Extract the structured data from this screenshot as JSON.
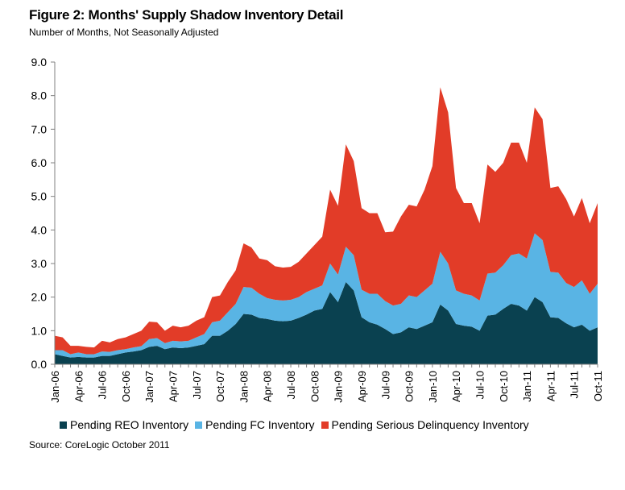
{
  "header": {
    "title": "Figure 2: Months' Supply Shadow Inventory Detail",
    "subtitle": "Number of Months, Not Seasonally Adjusted"
  },
  "footer": {
    "source": "Source: CoreLogic October 2011"
  },
  "colors": {
    "reo": "#0a4150",
    "fc": "#59b4e4",
    "sdq": "#e23c28",
    "axis": "#808080"
  },
  "chart_data": {
    "type": "area",
    "stacked": true,
    "title": "Figure 2: Months' Supply Shadow Inventory Detail",
    "subtitle": "Number of Months, Not Seasonally Adjusted",
    "xlabel": "",
    "ylabel": "",
    "ylim": [
      0,
      9
    ],
    "yticks": [
      "0.0",
      "1.0",
      "2.0",
      "3.0",
      "4.0",
      "5.0",
      "6.0",
      "7.0",
      "8.0",
      "9.0"
    ],
    "xtick_labels": [
      "Jan-06",
      "Apr-06",
      "Jul-06",
      "Oct-06",
      "Jan-07",
      "Apr-07",
      "Jul-07",
      "Oct-07",
      "Jan-08",
      "Apr-08",
      "Jul-08",
      "Oct-08",
      "Jan-09",
      "Apr-09",
      "Jul-09",
      "Oct-09",
      "Jan-10",
      "Apr-10",
      "Jul-10",
      "Oct-10",
      "Jan-11",
      "Apr-11",
      "Jul-11",
      "Oct-11"
    ],
    "x": [
      "Jan-06",
      "Feb-06",
      "Mar-06",
      "Apr-06",
      "May-06",
      "Jun-06",
      "Jul-06",
      "Aug-06",
      "Sep-06",
      "Oct-06",
      "Nov-06",
      "Dec-06",
      "Jan-07",
      "Feb-07",
      "Mar-07",
      "Apr-07",
      "May-07",
      "Jun-07",
      "Jul-07",
      "Aug-07",
      "Sep-07",
      "Oct-07",
      "Nov-07",
      "Dec-07",
      "Jan-08",
      "Feb-08",
      "Mar-08",
      "Apr-08",
      "May-08",
      "Jun-08",
      "Jul-08",
      "Aug-08",
      "Sep-08",
      "Oct-08",
      "Nov-08",
      "Dec-08",
      "Jan-09",
      "Feb-09",
      "Mar-09",
      "Apr-09",
      "May-09",
      "Jun-09",
      "Jul-09",
      "Aug-09",
      "Sep-09",
      "Oct-09",
      "Nov-09",
      "Dec-09",
      "Jan-10",
      "Feb-10",
      "Mar-10",
      "Apr-10",
      "May-10",
      "Jun-10",
      "Jul-10",
      "Aug-10",
      "Sep-10",
      "Oct-10",
      "Nov-10",
      "Dec-10",
      "Jan-11",
      "Feb-11",
      "Mar-11",
      "Apr-11",
      "May-11",
      "Jun-11",
      "Jul-11",
      "Aug-11",
      "Sep-11",
      "Oct-11"
    ],
    "legend_position": "bottom",
    "grid": false,
    "series": [
      {
        "name": "Pending REO Inventory",
        "values": [
          0.3,
          0.25,
          0.2,
          0.22,
          0.2,
          0.2,
          0.25,
          0.25,
          0.3,
          0.35,
          0.38,
          0.42,
          0.52,
          0.55,
          0.45,
          0.5,
          0.48,
          0.5,
          0.55,
          0.6,
          0.85,
          0.85,
          1.0,
          1.2,
          1.5,
          1.48,
          1.38,
          1.35,
          1.3,
          1.28,
          1.3,
          1.38,
          1.48,
          1.6,
          1.65,
          2.15,
          1.85,
          2.45,
          2.2,
          1.4,
          1.25,
          1.18,
          1.05,
          0.9,
          0.95,
          1.1,
          1.05,
          1.15,
          1.25,
          1.78,
          1.6,
          1.2,
          1.15,
          1.12,
          1.0,
          1.45,
          1.48,
          1.65,
          1.8,
          1.75,
          1.6,
          2.0,
          1.85,
          1.4,
          1.38,
          1.22,
          1.1,
          1.18,
          1.0,
          1.1
        ]
      },
      {
        "name": "Pending FC Inventory",
        "values": [
          0.12,
          0.17,
          0.1,
          0.13,
          0.1,
          0.1,
          0.13,
          0.12,
          0.12,
          0.1,
          0.12,
          0.12,
          0.23,
          0.23,
          0.18,
          0.2,
          0.2,
          0.2,
          0.25,
          0.3,
          0.4,
          0.45,
          0.55,
          0.6,
          0.8,
          0.8,
          0.72,
          0.62,
          0.62,
          0.62,
          0.62,
          0.62,
          0.67,
          0.65,
          0.7,
          0.85,
          0.82,
          1.05,
          1.05,
          0.82,
          0.85,
          0.92,
          0.83,
          0.85,
          0.85,
          0.95,
          0.95,
          1.05,
          1.15,
          1.57,
          1.4,
          1.0,
          0.95,
          0.93,
          0.9,
          1.25,
          1.25,
          1.3,
          1.45,
          1.55,
          1.55,
          1.9,
          1.85,
          1.35,
          1.35,
          1.2,
          1.2,
          1.32,
          1.1,
          1.3
        ]
      },
      {
        "name": "Pending Serious Delinquency Inventory",
        "values": [
          0.43,
          0.38,
          0.25,
          0.2,
          0.22,
          0.2,
          0.32,
          0.28,
          0.33,
          0.35,
          0.4,
          0.46,
          0.52,
          0.47,
          0.37,
          0.45,
          0.42,
          0.45,
          0.5,
          0.5,
          0.75,
          0.75,
          0.9,
          1.0,
          1.3,
          1.2,
          1.05,
          1.13,
          1.0,
          0.98,
          0.98,
          1.05,
          1.15,
          1.3,
          1.45,
          2.2,
          2.05,
          3.05,
          2.8,
          2.43,
          2.4,
          2.4,
          2.05,
          2.2,
          2.6,
          2.7,
          2.7,
          3.0,
          3.5,
          4.9,
          4.5,
          3.05,
          2.7,
          2.75,
          2.3,
          3.25,
          3.0,
          3.05,
          3.35,
          3.3,
          2.85,
          3.75,
          3.6,
          2.5,
          2.57,
          2.5,
          2.1,
          2.45,
          2.1,
          2.4
        ]
      }
    ]
  },
  "legend": {
    "items": [
      {
        "label": "Pending REO Inventory"
      },
      {
        "label": "Pending FC Inventory"
      },
      {
        "label": "Pending Serious Delinquency Inventory"
      }
    ]
  }
}
